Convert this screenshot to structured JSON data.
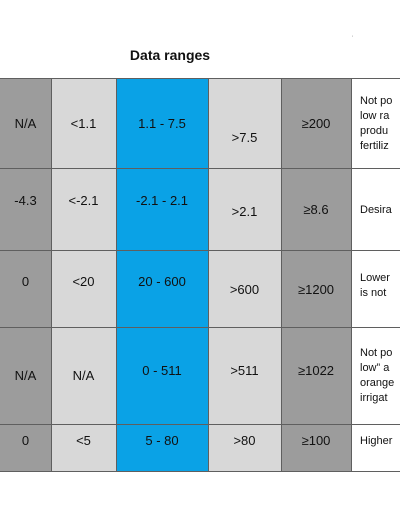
{
  "title": "Data ranges",
  "stray_mark": "'",
  "colors": {
    "dark_grey": "#9c9c9c",
    "light_grey": "#d8d8d8",
    "blue_highlight": "#0aa2e6",
    "grid_lines": "#5f5f5f"
  },
  "rows": [
    {
      "c1": "N/A",
      "c2": "<1.1",
      "c3": "1.1 - 7.5",
      "c4": ">7.5",
      "c5": "≥200",
      "desc": "Not po\nlow ra\nprodu\nfertiliz"
    },
    {
      "c1": "-4.3",
      "c2": "<-2.1",
      "c3": "-2.1 - 2.1",
      "c4": ">2.1",
      "c5": "≥8.6",
      "desc": "Desira"
    },
    {
      "c1": "0",
      "c2": "<20",
      "c3": "20 - 600",
      "c4": ">600",
      "c5": "≥1200",
      "desc": "Lower\nis not"
    },
    {
      "c1": "N/A",
      "c2": "N/A",
      "c3": "0 - 511",
      "c4": ">511",
      "c5": "≥1022",
      "desc": "Not po\nlow” a\norange\nirrigat"
    },
    {
      "c1": "0",
      "c2": "<5",
      "c3": "5 - 80",
      "c4": ">80",
      "c5": "≥100",
      "desc": "Higher"
    }
  ]
}
